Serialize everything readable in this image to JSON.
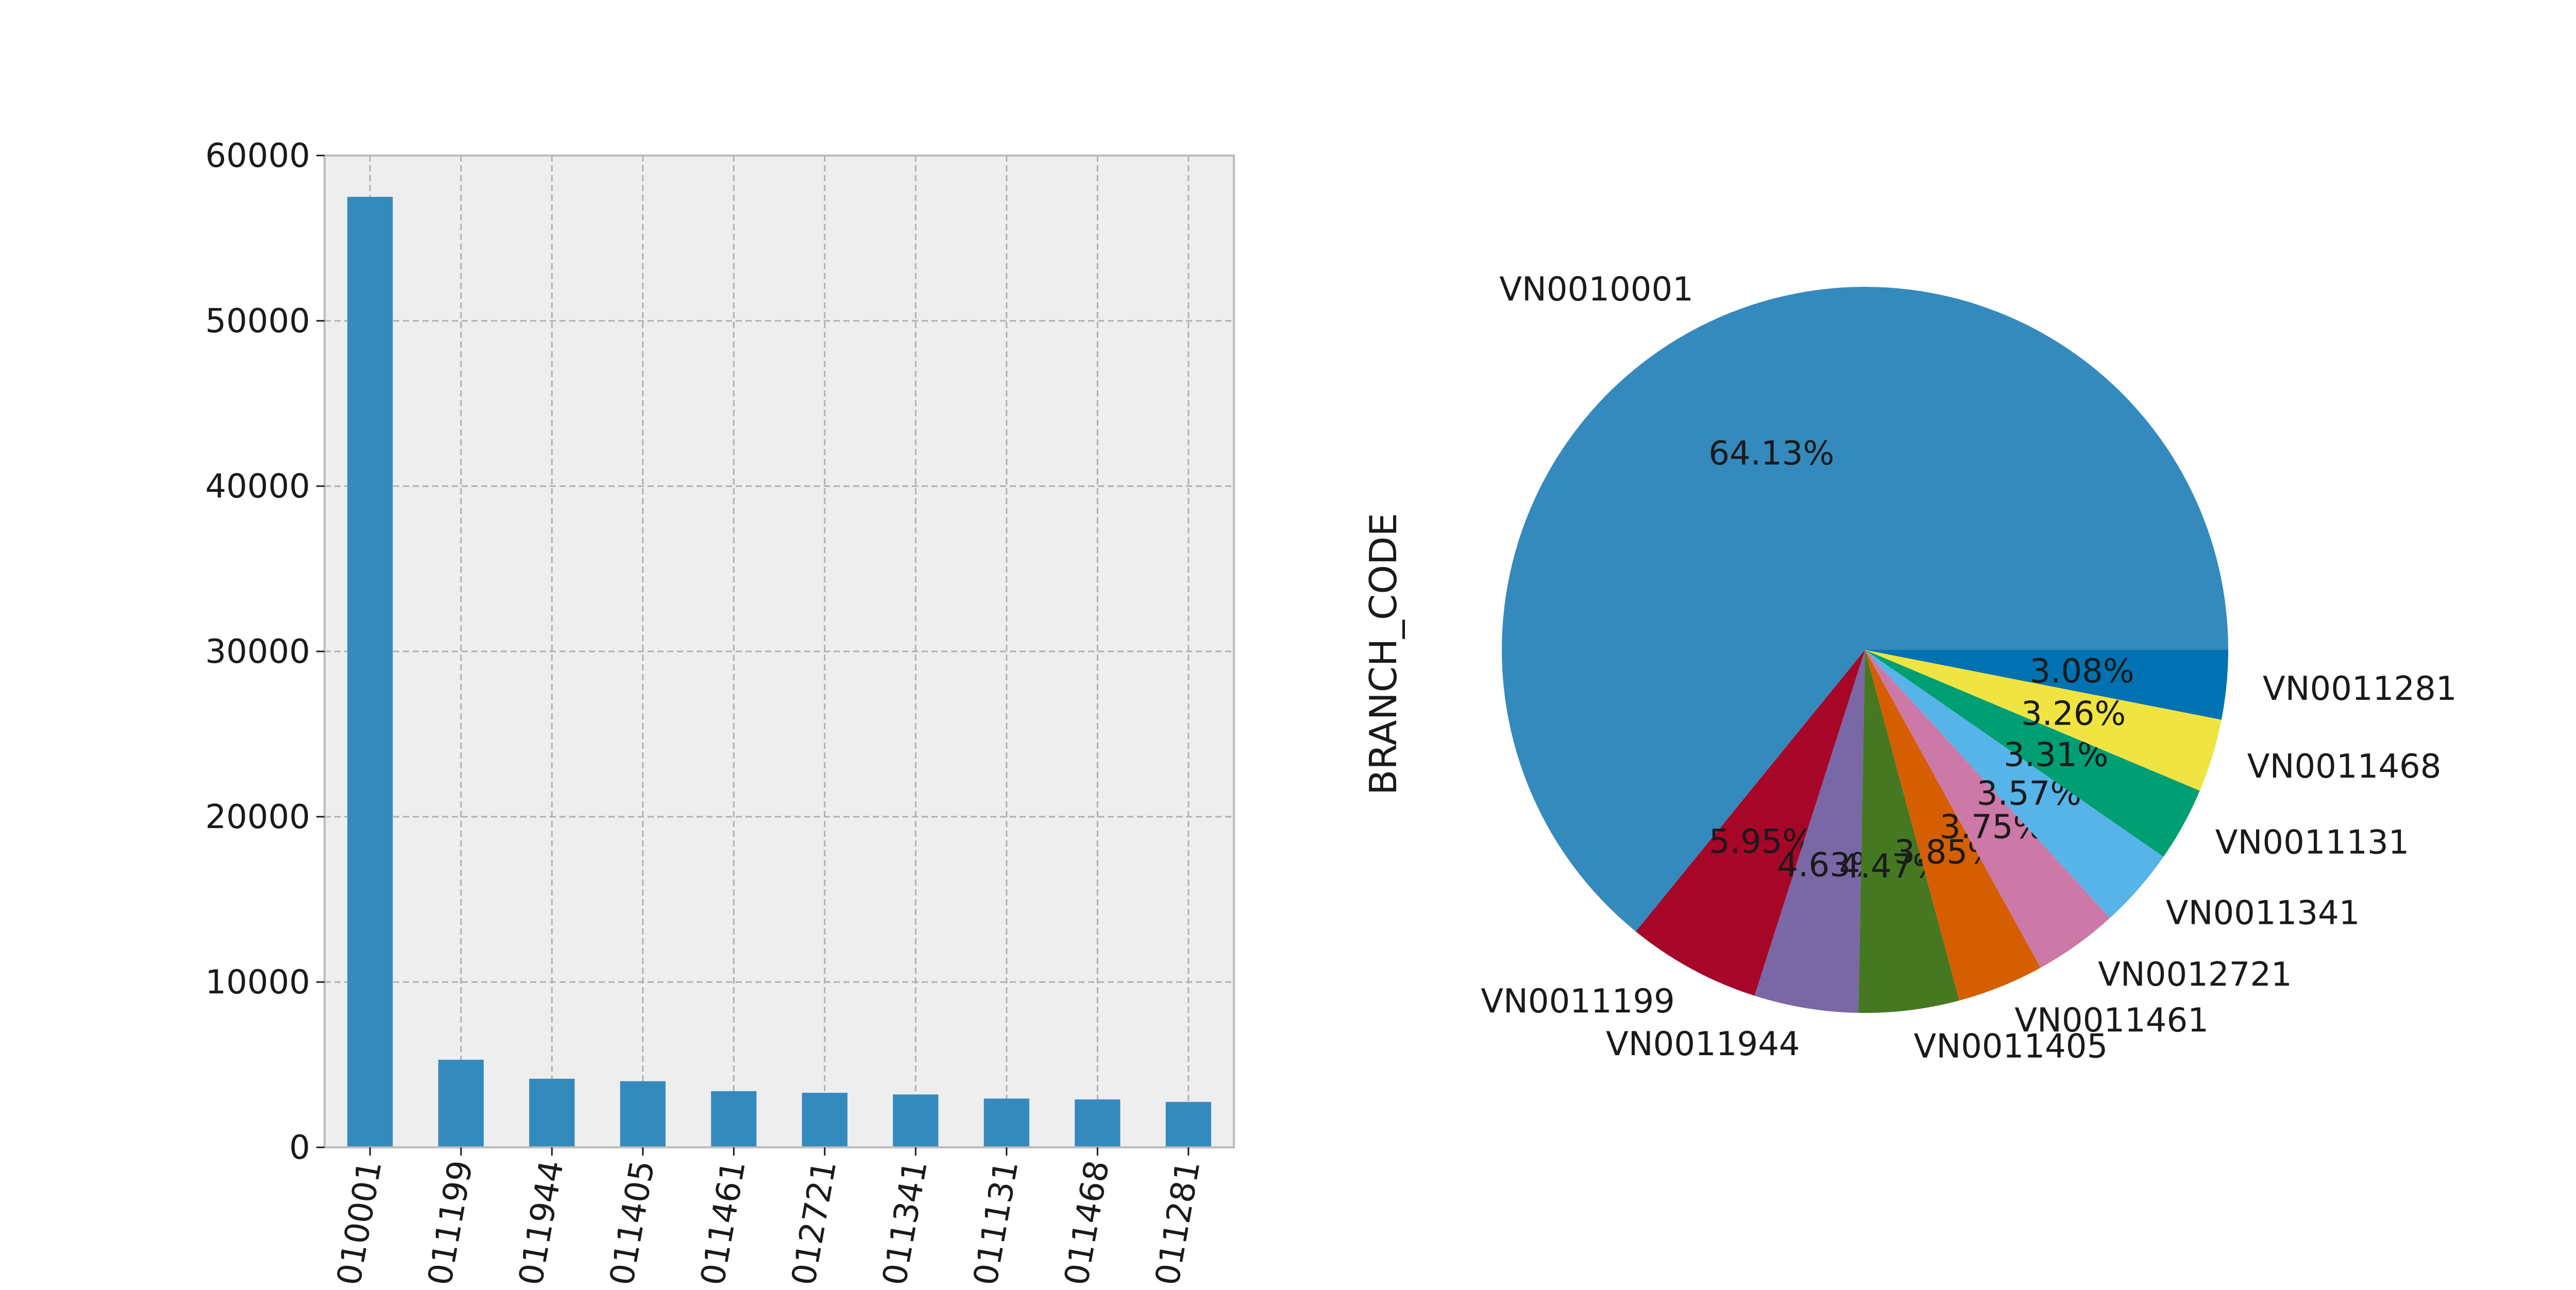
{
  "colors": {
    "axes_bg": "#eeeeee",
    "axes_edge": "#bcbcbc",
    "grid": "#b0b0b0",
    "bar": "#348abd",
    "text": "#1a1a1a"
  },
  "chart_data": [
    {
      "type": "bar",
      "categories": [
        "VN0010001",
        "VN0011199",
        "VN0011944",
        "VN0011405",
        "VN0011461",
        "VN0012721",
        "VN0011341",
        "VN0011131",
        "VN0011468",
        "VN0011281"
      ],
      "category_tick_labels": [
        "010001",
        "011199",
        "011944",
        "011405",
        "011461",
        "012721",
        "011341",
        "011131",
        "011468",
        "011281"
      ],
      "values": [
        57500,
        5300,
        4150,
        4000,
        3400,
        3300,
        3200,
        2950,
        2900,
        2750
      ],
      "ylim": [
        0,
        60000
      ],
      "yticks": [
        "0",
        "10000",
        "20000",
        "30000",
        "40000",
        "50000",
        "60000"
      ],
      "grid": true,
      "xlabel": "",
      "ylabel": ""
    },
    {
      "type": "pie",
      "ylabel": "BRANCH_CODE",
      "slices": [
        {
          "label": "VN0010001",
          "value": 64.13,
          "pct": "64.13%",
          "color": "#348abd"
        },
        {
          "label": "VN0011199",
          "value": 5.95,
          "pct": "5.95%",
          "color": "#a60628"
        },
        {
          "label": "VN0011944",
          "value": 4.63,
          "pct": "4.63%",
          "color": "#7a68a6"
        },
        {
          "label": "VN0011405",
          "value": 4.47,
          "pct": "4.47%",
          "color": "#467821"
        },
        {
          "label": "VN0011461",
          "value": 3.85,
          "pct": "3.85%",
          "color": "#d55e00"
        },
        {
          "label": "VN0012721",
          "value": 3.75,
          "pct": "3.75%",
          "color": "#cc79a7"
        },
        {
          "label": "VN0011341",
          "value": 3.57,
          "pct": "3.57%",
          "color": "#56b4e9"
        },
        {
          "label": "VN0011131",
          "value": 3.31,
          "pct": "3.31%",
          "color": "#009e73"
        },
        {
          "label": "VN0011468",
          "value": 3.26,
          "pct": "3.26%",
          "color": "#f0e442"
        },
        {
          "label": "VN0011281",
          "value": 3.08,
          "pct": "3.08%",
          "color": "#0072b2"
        }
      ]
    }
  ]
}
